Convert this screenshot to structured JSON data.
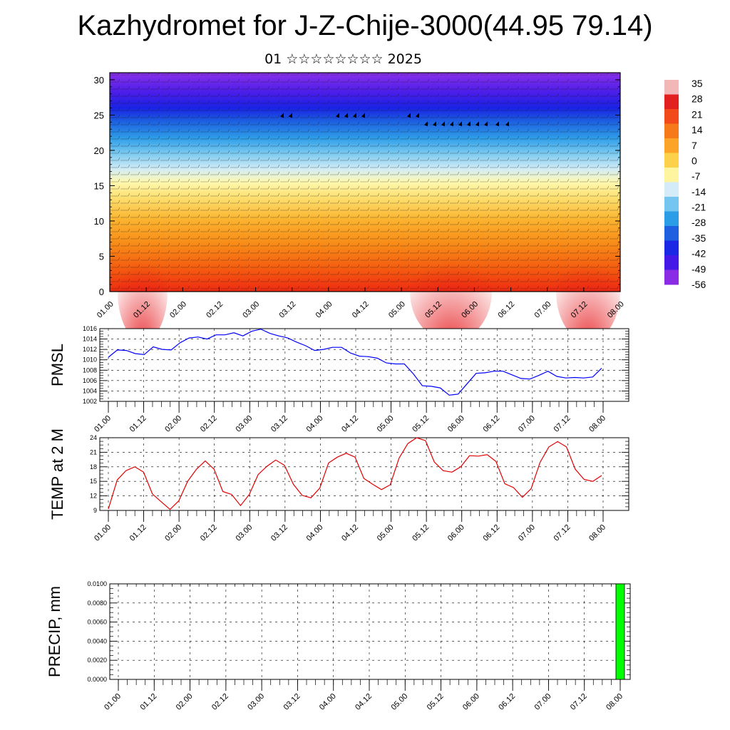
{
  "title": "Kazhydromet for J-Z-Chije-3000(44.95 79.14)",
  "subtitle": "01 ☆☆☆☆☆☆☆☆ 2025",
  "time_tick_labels": [
    "01.00",
    "01.12",
    "02.00",
    "02.12",
    "03.00",
    "03.12",
    "04.00",
    "04.12",
    "05.00",
    "05.12",
    "06.00",
    "06.12",
    "07.00",
    "07.12",
    "08.00"
  ],
  "colorbar": {
    "labels": [
      "35",
      "28",
      "21",
      "14",
      "7",
      "0",
      "-7",
      "-14",
      "-21",
      "-28",
      "-35",
      "-42",
      "-49",
      "-56"
    ],
    "colors_top_to_bottom": [
      "#f2b8b8",
      "#e22020",
      "#f24a1a",
      "#f77a1a",
      "#fba428",
      "#fdd14a",
      "#fff5a0",
      "#d4ecf8",
      "#74c6f0",
      "#2a9de6",
      "#1e60e0",
      "#1a28e6",
      "#4418e6",
      "#8a2be6"
    ]
  },
  "chart_data": [
    {
      "id": "cross-section",
      "type": "heatmap",
      "title": "",
      "xlabel": "",
      "ylabel": "",
      "x_categories": [
        "01.00",
        "01.12",
        "02.00",
        "02.12",
        "03.00",
        "03.12",
        "04.00",
        "04.12",
        "05.00",
        "05.12",
        "06.00",
        "06.12",
        "07.00",
        "07.12",
        "08.00"
      ],
      "ylim": [
        0,
        31
      ],
      "yticks": [
        "0",
        "5",
        "10",
        "15",
        "20",
        "25",
        "30"
      ],
      "description_of_fill": "temperature with wind barbs",
      "approx_temperature_by_level": [
        {
          "level": 0,
          "value": 21
        },
        {
          "level": 5,
          "value": 14
        },
        {
          "level": 10,
          "value": 7
        },
        {
          "level": 15,
          "value": -7
        },
        {
          "level": 20,
          "value": -28
        },
        {
          "level": 25,
          "value": -56
        },
        {
          "level": 30,
          "value": -56
        }
      ]
    },
    {
      "id": "pmsl",
      "type": "line",
      "title": "",
      "ylabel": "PMSL",
      "ylim": [
        1002,
        1016
      ],
      "yticks": [
        "1002",
        "1004",
        "1006",
        "1008",
        "1010",
        "1012",
        "1014",
        "1016"
      ],
      "series": [
        {
          "color": "#0000ff",
          "values": [
            1010.5,
            1011.9,
            1011.8,
            1011.2,
            1011.0,
            1012.5,
            1012.0,
            1011.9,
            1013.3,
            1014.2,
            1014.4,
            1014.0,
            1014.8,
            1014.8,
            1015.2,
            1014.6,
            1015.5,
            1015.9,
            1015.1,
            1014.6,
            1014.2,
            1013.4,
            1012.7,
            1011.8,
            1012.0,
            1012.4,
            1012.4,
            1011.3,
            1010.7,
            1010.6,
            1010.3,
            1009.4,
            1009.2,
            1009.2,
            1007.3,
            1005.0,
            1004.9,
            1004.6,
            1003.2,
            1003.4,
            1005.4,
            1007.4,
            1007.5,
            1007.8,
            1007.8,
            1007.1,
            1006.4,
            1006.3,
            1007.0,
            1007.8,
            1006.8,
            1006.5,
            1006.6,
            1006.5,
            1006.7,
            1008.4
          ]
        }
      ]
    },
    {
      "id": "temp2m",
      "type": "line",
      "title": "",
      "ylabel": "TEMP at 2 M",
      "ylim": [
        9,
        24
      ],
      "yticks": [
        "9",
        "12",
        "15",
        "18",
        "21",
        "24"
      ],
      "series": [
        {
          "color": "#e00000",
          "values": [
            9.3,
            15.3,
            17.2,
            18.0,
            16.9,
            12.4,
            10.8,
            9.2,
            11.0,
            15.0,
            17.5,
            19.2,
            17.5,
            12.9,
            12.3,
            10.0,
            12.3,
            16.4,
            18.1,
            19.4,
            18.3,
            14.4,
            12.1,
            11.6,
            13.6,
            18.8,
            20.0,
            20.8,
            20.0,
            15.6,
            14.4,
            13.3,
            14.3,
            19.8,
            22.8,
            24.0,
            23.4,
            19.0,
            17.2,
            16.9,
            18.0,
            20.3,
            20.2,
            20.5,
            19.1,
            14.5,
            13.7,
            11.7,
            13.5,
            18.9,
            22.1,
            23.2,
            22.1,
            17.5,
            15.4,
            15.0,
            16.2
          ]
        }
      ]
    },
    {
      "id": "precip",
      "type": "bar",
      "title": "",
      "ylabel": "PRECIP, mm",
      "ylim": [
        0,
        0.01
      ],
      "yticks": [
        "0.0000",
        "0.0020",
        "0.0040",
        "0.0060",
        "0.0080",
        "0.0100"
      ],
      "bars": [
        {
          "x": "08.00",
          "value": 0.01,
          "color": "#00ff00"
        }
      ]
    }
  ]
}
